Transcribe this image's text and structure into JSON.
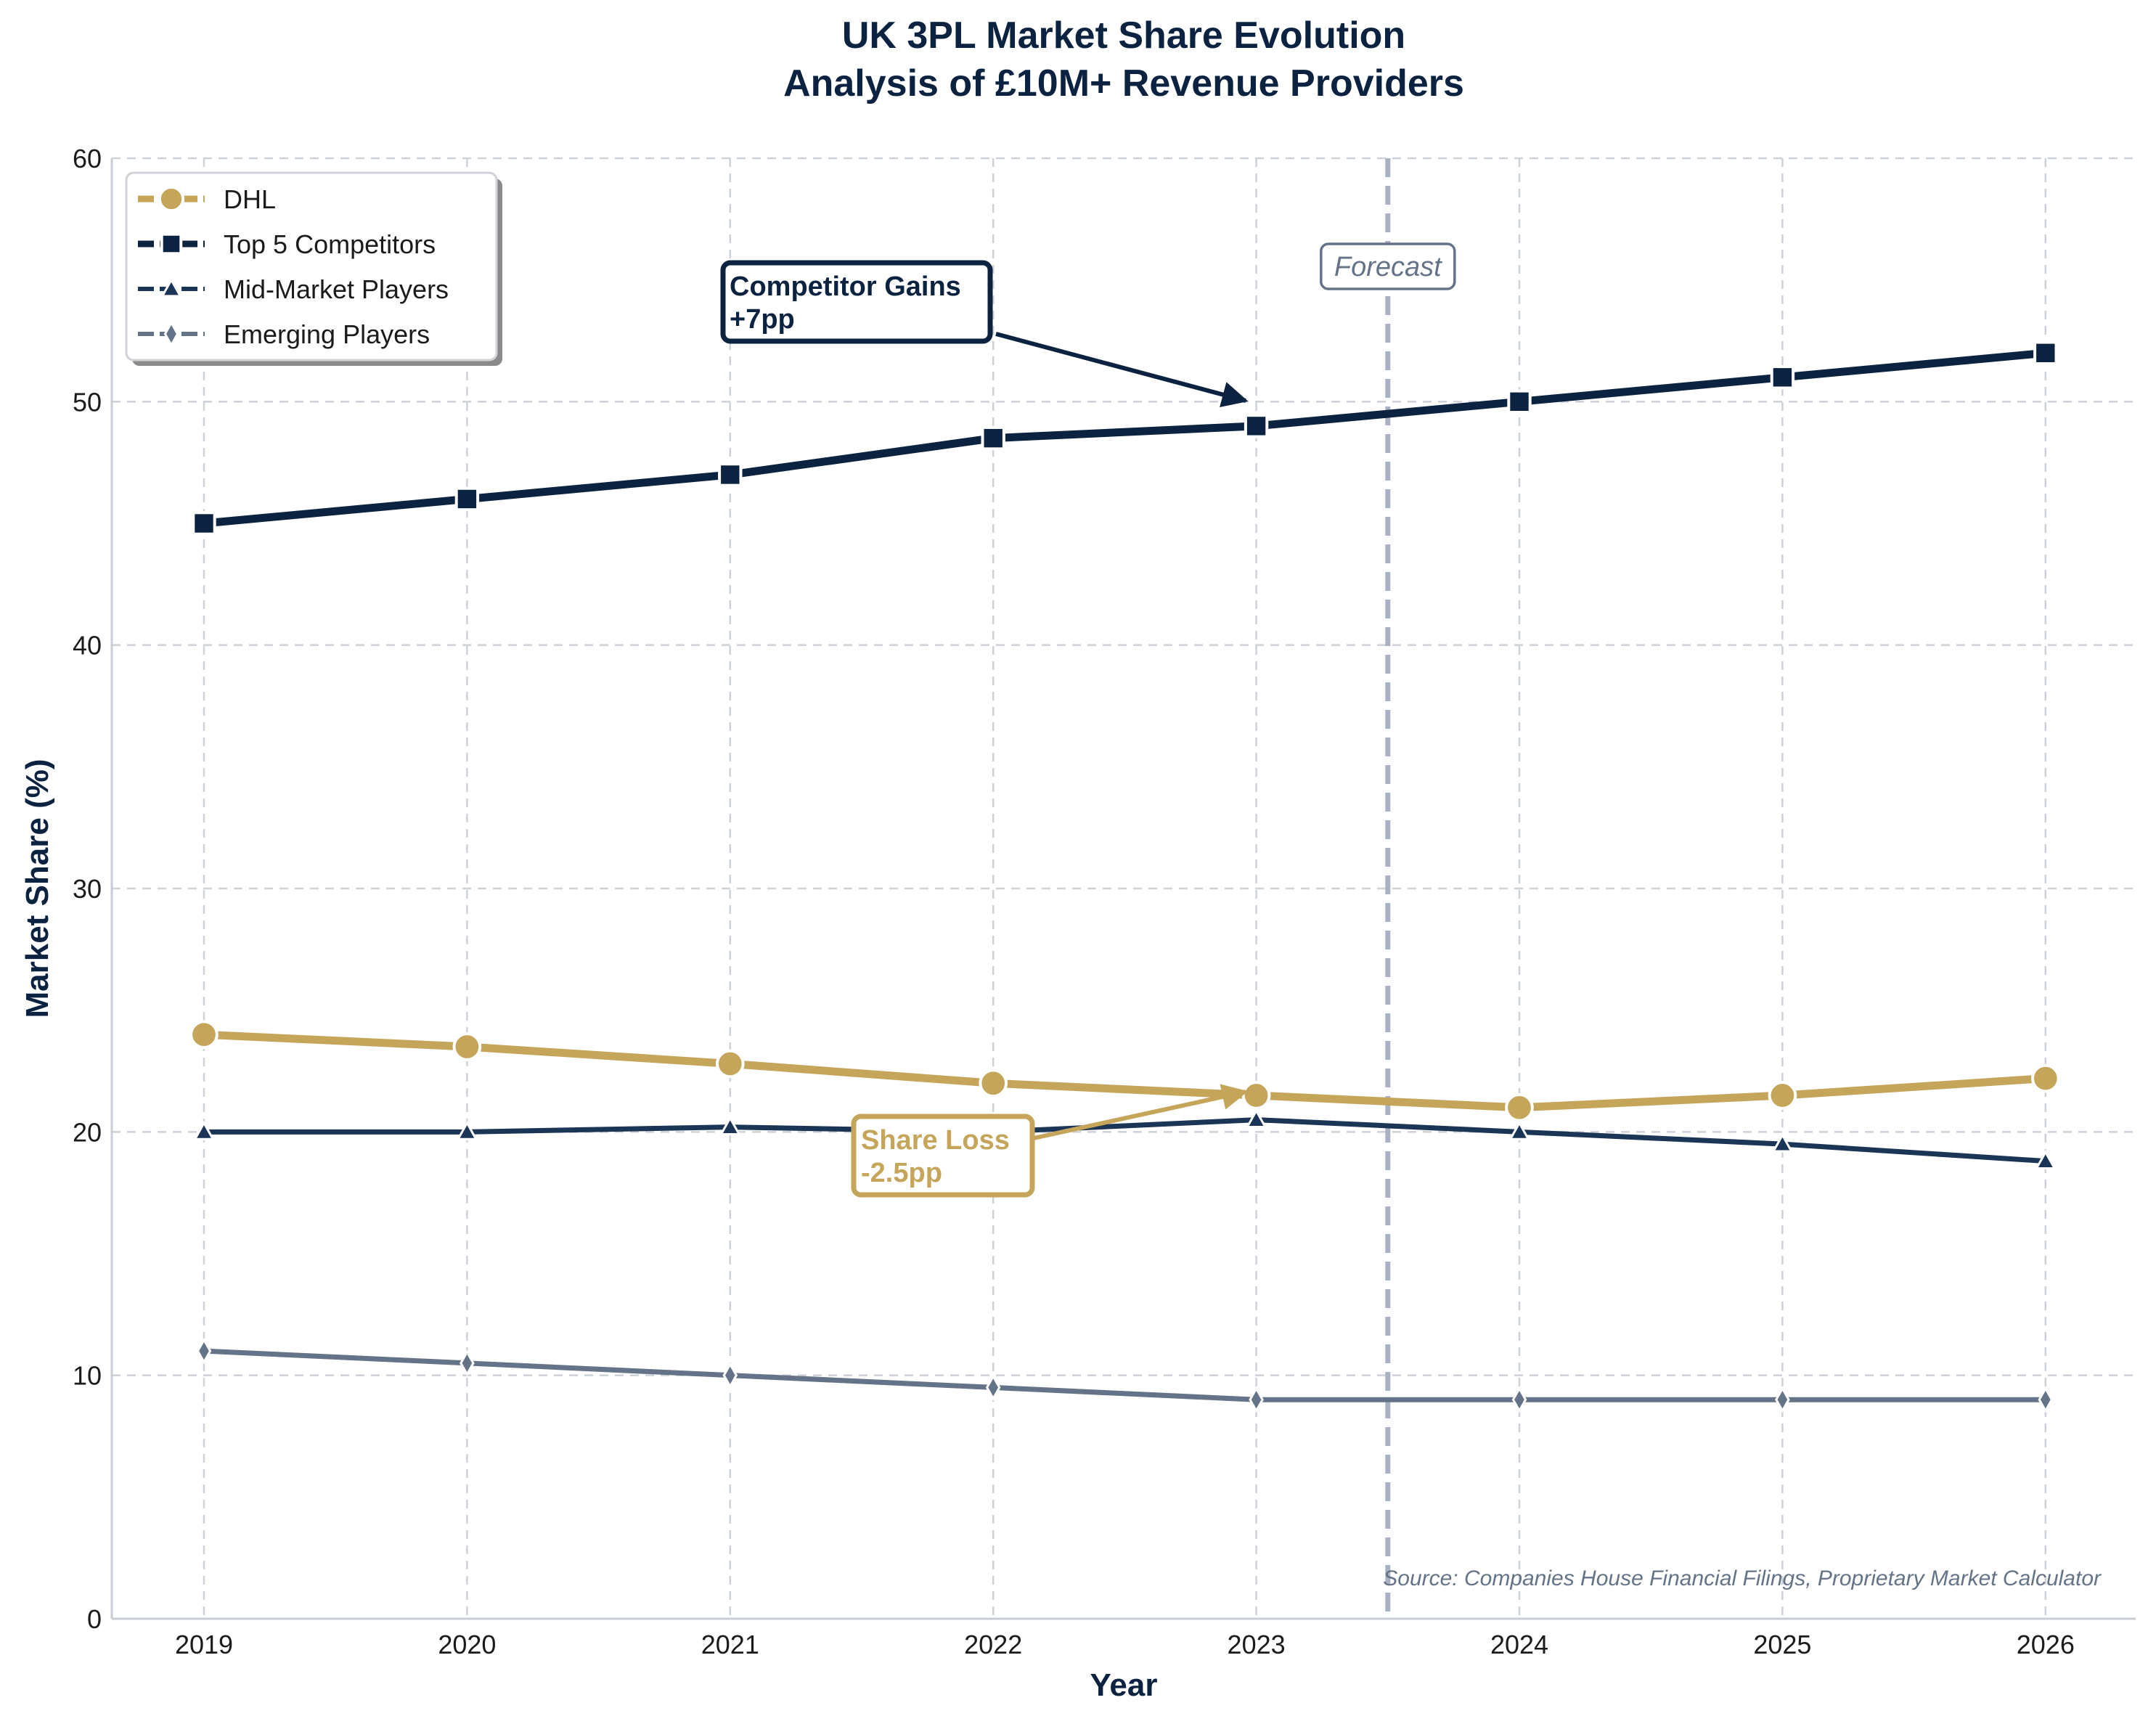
{
  "chart_data": {
    "type": "line",
    "title_line1": "UK 3PL Market Share Evolution",
    "title_line2": "Analysis of £10M+ Revenue Providers",
    "xlabel": "Year",
    "ylabel": "Market Share (%)",
    "categories": [
      "2019",
      "2020",
      "2021",
      "2022",
      "2023",
      "2024",
      "2025",
      "2026"
    ],
    "ylim": [
      0,
      60
    ],
    "yticks": [
      "0",
      "10",
      "20",
      "30",
      "40",
      "50",
      "60"
    ],
    "grid": true,
    "legend_position": "top-left",
    "series": [
      {
        "name": "DHL",
        "values": [
          24.0,
          23.5,
          22.8,
          22.0,
          21.5,
          21.0,
          21.5,
          22.2
        ],
        "color": "#c5a55a",
        "marker": "circle"
      },
      {
        "name": "Top 5 Competitors",
        "values": [
          45.0,
          46.0,
          47.0,
          48.5,
          49.0,
          50.0,
          51.0,
          52.0
        ],
        "color": "#0b2341",
        "marker": "square"
      },
      {
        "name": "Mid-Market Players",
        "values": [
          20.0,
          20.0,
          20.2,
          20.0,
          20.5,
          20.0,
          19.5,
          18.8
        ],
        "color": "#1b3556",
        "marker": "triangle"
      },
      {
        "name": "Emerging Players",
        "values": [
          11.0,
          10.5,
          10.0,
          9.5,
          9.0,
          9.0,
          9.0,
          9.0
        ],
        "color": "#647387",
        "marker": "diamond"
      }
    ],
    "forecast_line": {
      "x": 4.5,
      "label": "Forecast",
      "color": "#a9b2c3"
    },
    "annotations": [
      {
        "line1": "Competitor Gains",
        "line2": "+7pp",
        "target": [
          4,
          50.0
        ],
        "color": "#0b2341"
      },
      {
        "line1": "Share Loss",
        "line2": "-2.5pp",
        "target": [
          4,
          21.5
        ],
        "color": "#c5a55a"
      }
    ],
    "source": "Source: Companies House Financial Filings, Proprietary Market Calculator"
  }
}
